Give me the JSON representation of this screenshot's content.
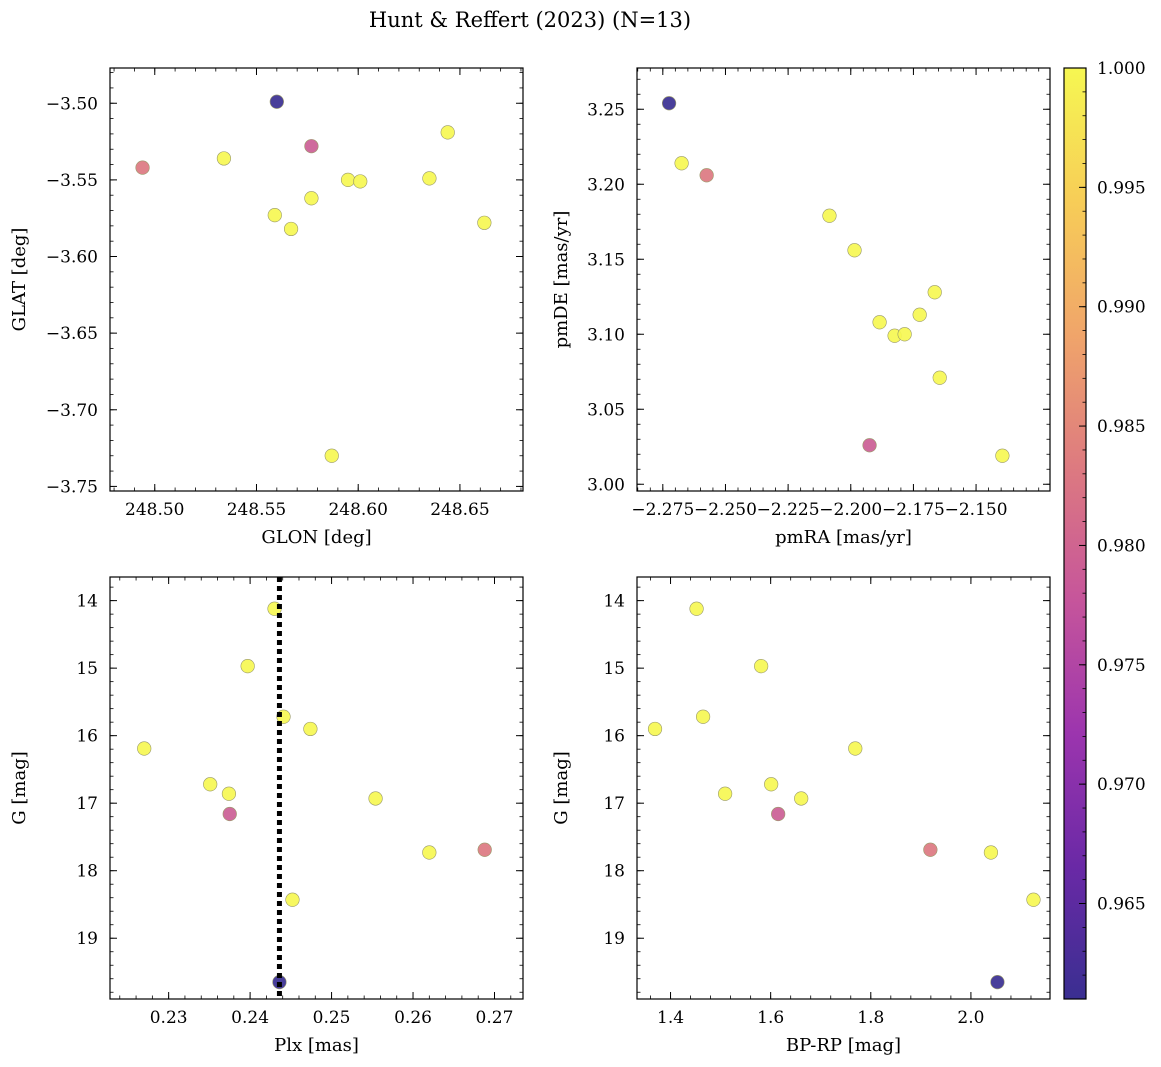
{
  "title": "Hunt & Reffert (2023) (N=13)",
  "colormap": {
    "name": "plasma",
    "stops": [
      "#3a2f91",
      "#6a29a6",
      "#9c35ae",
      "#c6559b",
      "#dd7a80",
      "#f0a56a",
      "#f7cd57",
      "#f6f752"
    ],
    "range": [
      0.961,
      1.0
    ],
    "ticks": [
      "0.965",
      "0.970",
      "0.975",
      "0.980",
      "0.985",
      "0.990",
      "0.995",
      "1.000"
    ]
  },
  "chart_data": [
    {
      "type": "scatter",
      "xlabel": "GLON [deg]",
      "ylabel": "GLAT [deg]",
      "xlim": [
        248.478,
        248.681
      ],
      "ylim": [
        -3.753,
        -3.477
      ],
      "xticks": [
        "248.50",
        "248.55",
        "248.60",
        "248.65"
      ],
      "yticks": [
        "−3.50",
        "−3.55",
        "−3.60",
        "−3.65",
        "−3.70",
        "−3.75"
      ],
      "x": [
        248.56,
        248.577,
        248.494,
        248.644,
        248.534,
        248.595,
        248.601,
        248.635,
        248.577,
        248.559,
        248.567,
        248.662,
        248.587
      ],
      "y": [
        -3.499,
        -3.528,
        -3.542,
        -3.519,
        -3.536,
        -3.55,
        -3.551,
        -3.549,
        -3.562,
        -3.573,
        -3.582,
        -3.578,
        -3.73
      ],
      "c": [
        0.961,
        0.979,
        0.983,
        1.0,
        1.0,
        1.0,
        1.0,
        1.0,
        1.0,
        1.0,
        1.0,
        1.0,
        1.0
      ]
    },
    {
      "type": "scatter",
      "xlabel": "pmRA [mas/yr]",
      "ylabel": "pmDE [mas/yr]",
      "xlim": [
        -2.2853,
        -2.1205
      ],
      "ylim": [
        2.9955,
        3.2775
      ],
      "xticks": [
        "−2.275",
        "−2.250",
        "−2.225",
        "−2.200",
        "−2.175",
        "−2.150"
      ],
      "yticks": [
        "3.00",
        "3.05",
        "3.10",
        "3.15",
        "3.20",
        "3.25"
      ],
      "x": [
        -2.2725,
        -2.2575,
        -2.1925,
        -2.2675,
        -2.2085,
        -2.1985,
        -2.1665,
        -2.1725,
        -2.1885,
        -2.1825,
        -2.1785,
        -2.1645,
        -2.1395
      ],
      "y": [
        3.254,
        3.206,
        3.026,
        3.214,
        3.179,
        3.156,
        3.128,
        3.113,
        3.108,
        3.099,
        3.1,
        3.071,
        3.019
      ],
      "c": [
        0.961,
        0.983,
        0.979,
        1.0,
        1.0,
        1.0,
        1.0,
        1.0,
        1.0,
        1.0,
        1.0,
        1.0,
        1.0
      ]
    },
    {
      "type": "scatter",
      "xlabel": "Plx [mas]",
      "ylabel": "G [mag]",
      "xlim": [
        0.2228,
        0.2735
      ],
      "ylim": [
        19.9,
        13.65
      ],
      "y_inverted": true,
      "xticks": [
        "0.23",
        "0.24",
        "0.25",
        "0.26",
        "0.27"
      ],
      "yticks": [
        "14",
        "15",
        "16",
        "17",
        "18",
        "19"
      ],
      "reference_line": {
        "x": 0.2436,
        "style": "dotted"
      },
      "x": [
        0.2436,
        0.2688,
        0.2375,
        0.243,
        0.2397,
        0.2441,
        0.2474,
        0.227,
        0.2351,
        0.2374,
        0.2554,
        0.262,
        0.2452
      ],
      "y": [
        19.65,
        17.69,
        17.16,
        14.12,
        14.97,
        15.72,
        15.9,
        16.19,
        16.72,
        16.86,
        16.93,
        17.73,
        18.43
      ],
      "c": [
        0.961,
        0.983,
        0.979,
        1.0,
        1.0,
        1.0,
        1.0,
        1.0,
        1.0,
        1.0,
        1.0,
        1.0,
        1.0
      ]
    },
    {
      "type": "scatter",
      "xlabel": "BP-RP [mag]",
      "ylabel": "G [mag]",
      "xlim": [
        1.333,
        2.158
      ],
      "ylim": [
        19.9,
        13.65
      ],
      "y_inverted": true,
      "xticks": [
        "1.4",
        "1.6",
        "1.8",
        "2.0"
      ],
      "yticks": [
        "14",
        "15",
        "16",
        "17",
        "18",
        "19"
      ],
      "x": [
        2.053,
        1.919,
        1.615,
        1.452,
        1.581,
        1.465,
        1.369,
        1.769,
        1.601,
        1.509,
        1.661,
        2.04,
        2.125
      ],
      "y": [
        19.65,
        17.69,
        17.16,
        14.12,
        14.97,
        15.72,
        15.9,
        16.19,
        16.72,
        16.86,
        16.93,
        17.73,
        18.43
      ],
      "c": [
        0.961,
        0.983,
        0.979,
        1.0,
        1.0,
        1.0,
        1.0,
        1.0,
        1.0,
        1.0,
        1.0,
        1.0,
        1.0
      ]
    }
  ]
}
